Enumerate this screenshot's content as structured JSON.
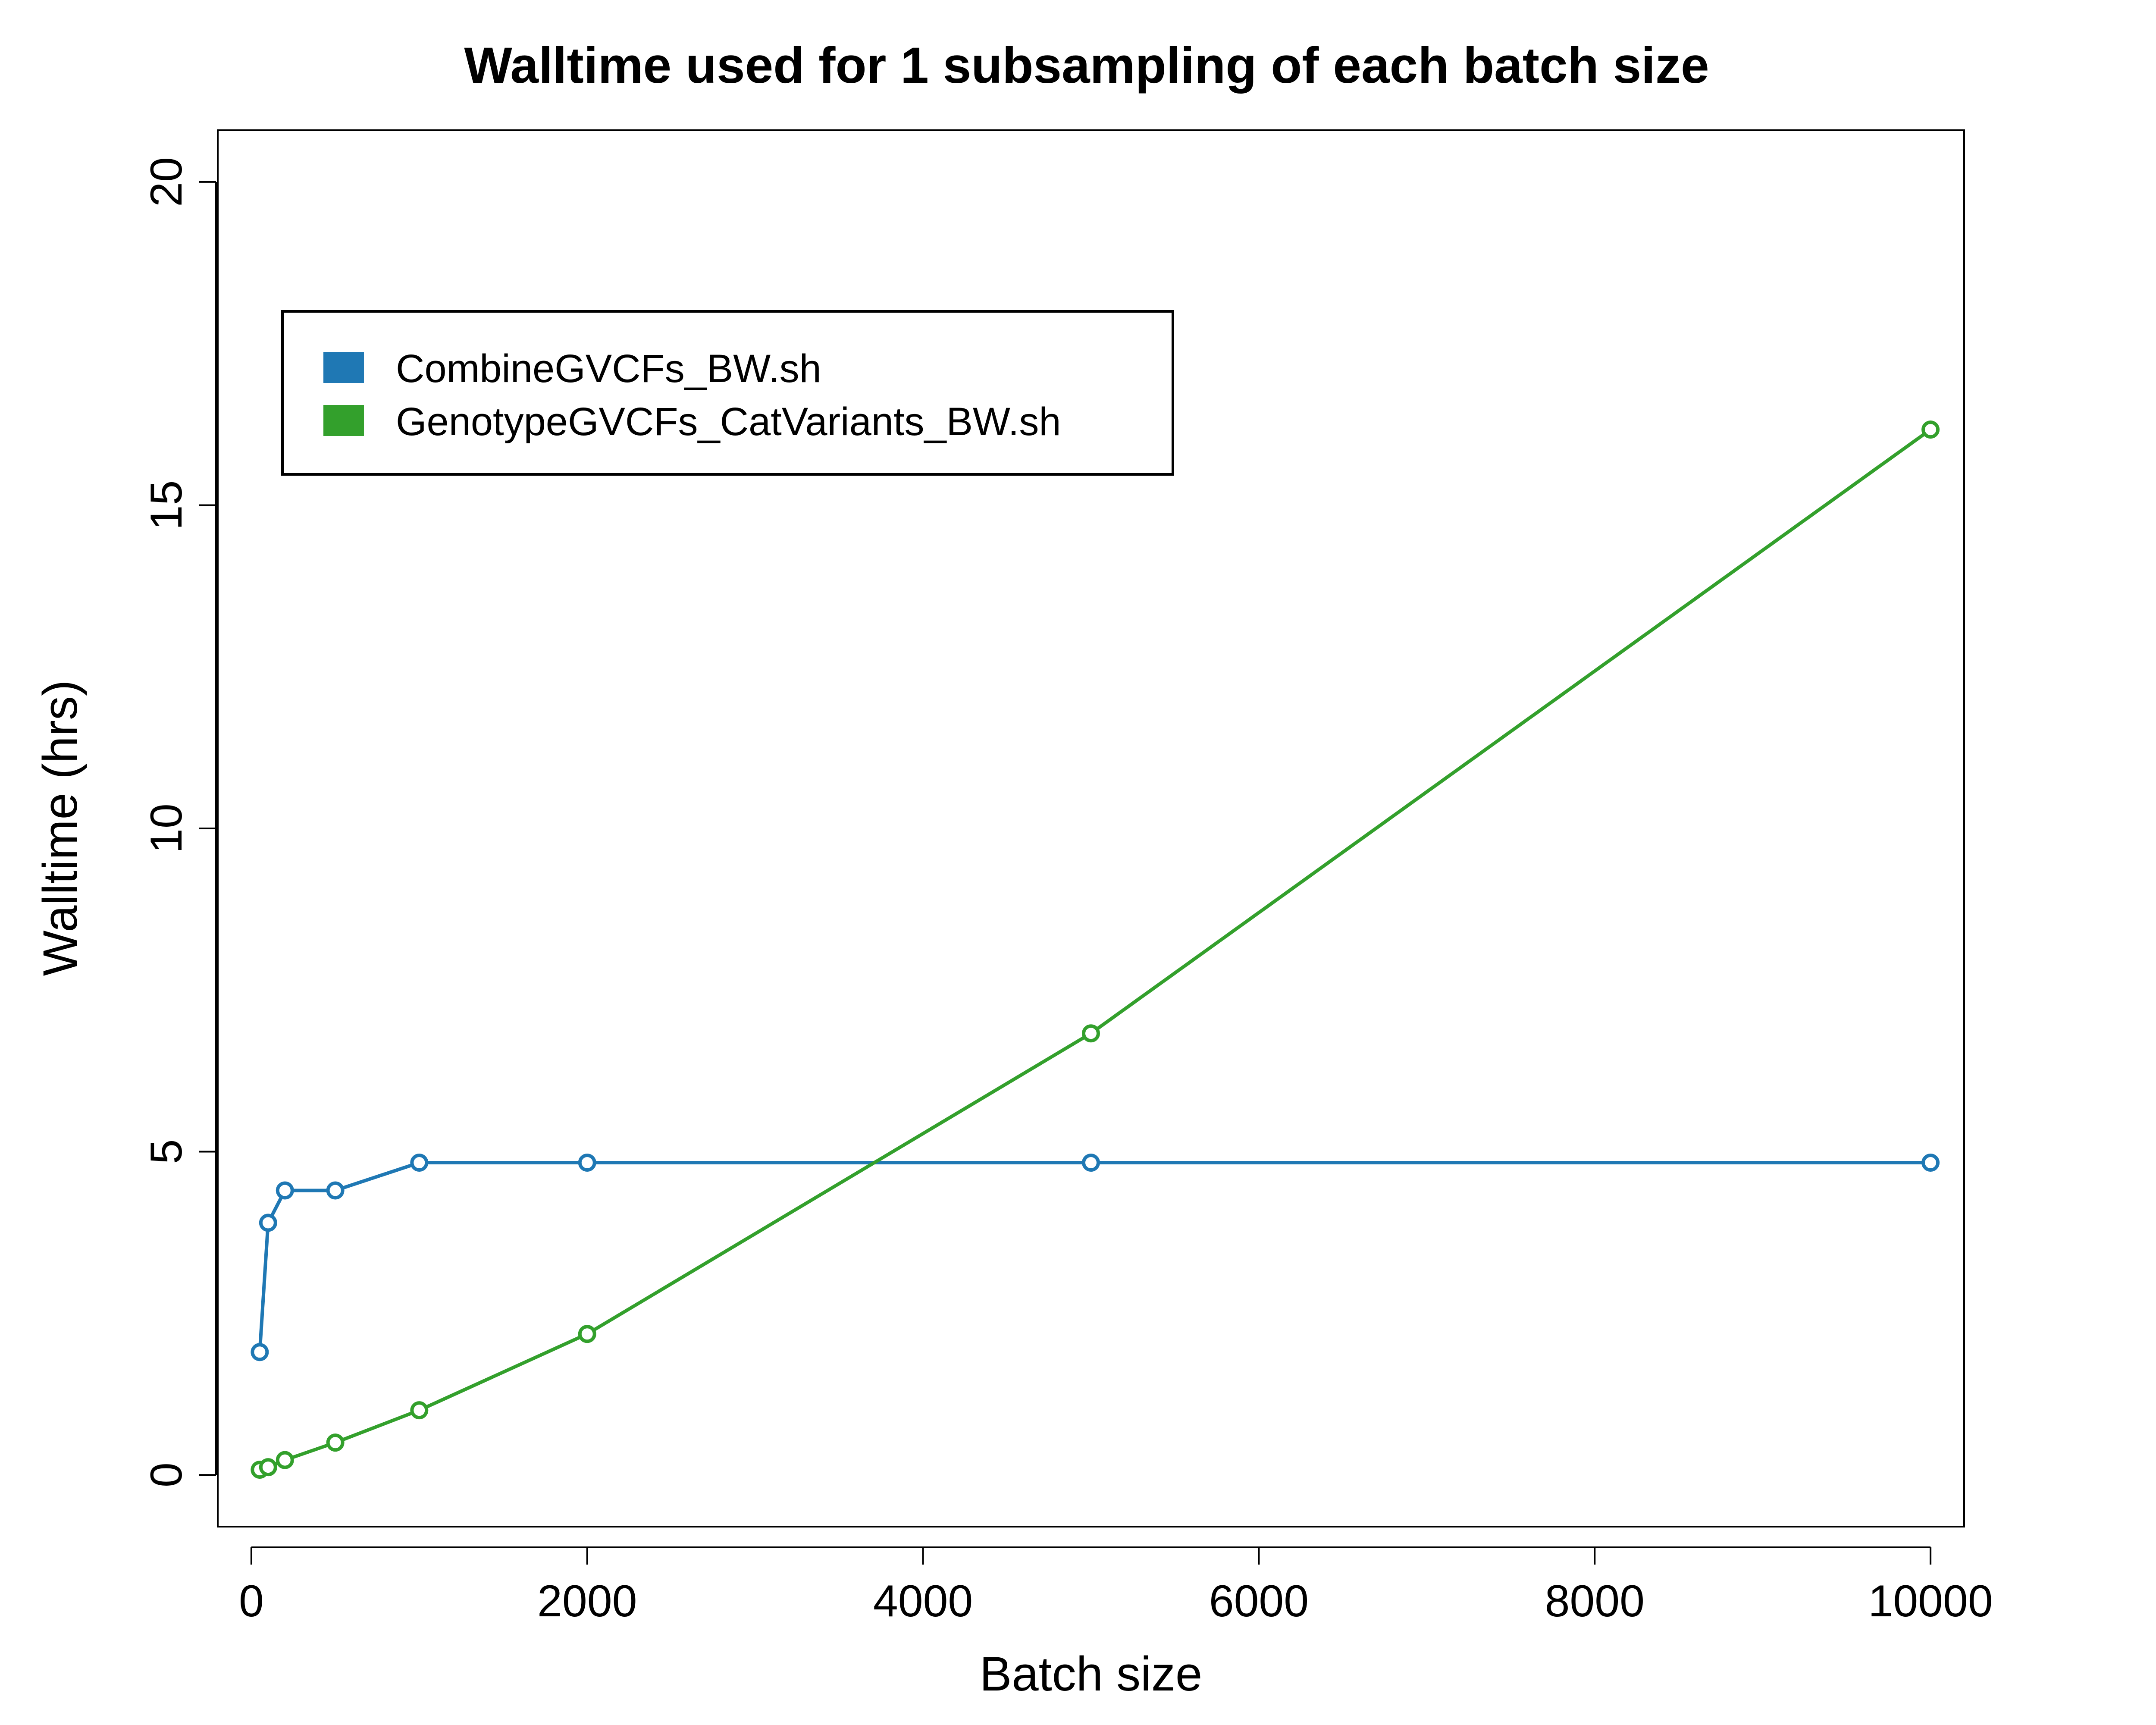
{
  "chart_data": {
    "type": "line",
    "title": "Walltime used for 1 subsampling of each batch size",
    "xlabel": "Batch size",
    "ylabel": "Walltime (hrs)",
    "xlim": [
      -200,
      10200
    ],
    "ylim": [
      -0.8,
      20.8
    ],
    "xticks": [
      0,
      2000,
      4000,
      6000,
      8000,
      10000
    ],
    "xtick_labels": [
      "0",
      "2000",
      "4000",
      "6000",
      "8000",
      "10000"
    ],
    "yticks": [
      0,
      5,
      10,
      15,
      20
    ],
    "ytick_labels": [
      "0",
      "5",
      "10",
      "15",
      "20"
    ],
    "grid": false,
    "legend_position": "top-left",
    "x": [
      50,
      100,
      200,
      500,
      1000,
      2000,
      5000,
      10000
    ],
    "series": [
      {
        "name": "CombineGVCFs_BW.sh",
        "color": "#1f78b4",
        "values": [
          1.9,
          3.9,
          4.4,
          4.4,
          4.83,
          4.83,
          4.83,
          4.83
        ]
      },
      {
        "name": "GenotypeGVCFs_CatVariants_BW.sh",
        "color": "#33a02c",
        "values": [
          0.08,
          0.12,
          0.23,
          0.5,
          1.0,
          2.18,
          6.83,
          16.17
        ]
      }
    ]
  }
}
